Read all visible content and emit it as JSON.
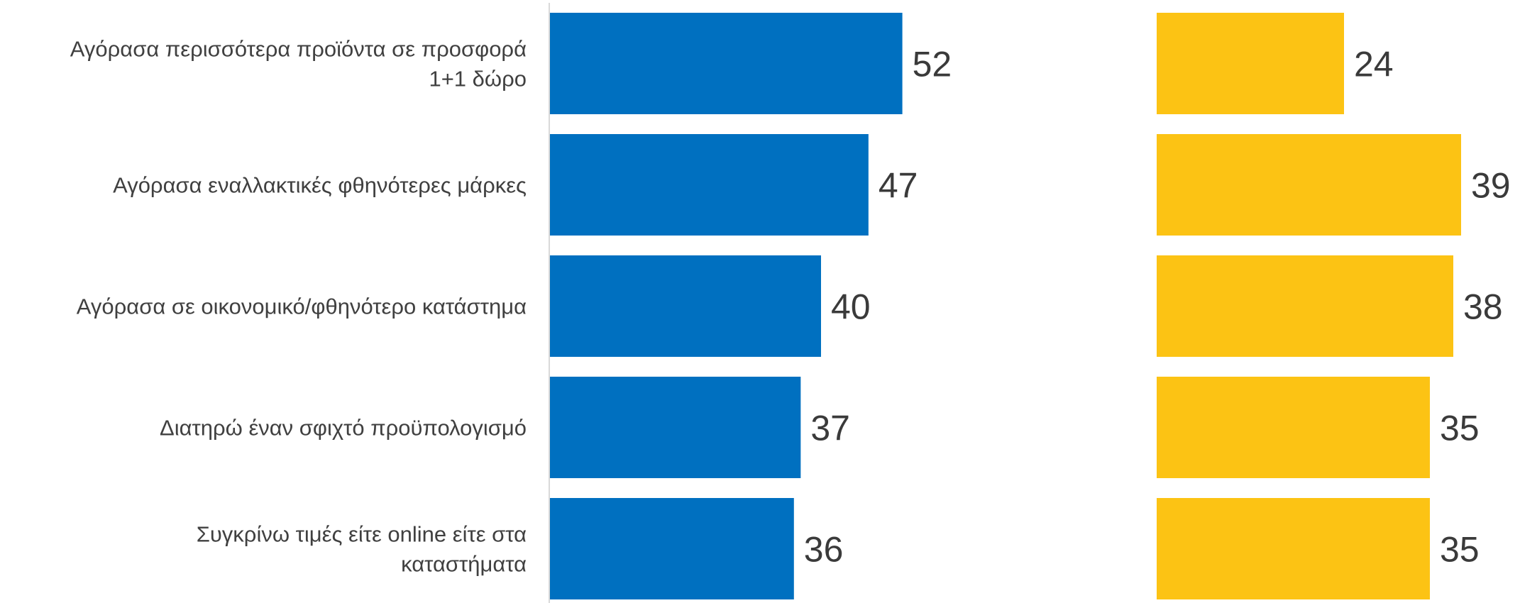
{
  "chart_data": {
    "type": "bar",
    "orientation": "horizontal",
    "categories": [
      [
        "Αγόρασα περισσότερα προϊόντα σε προσφορά",
        "1+1 δώρο"
      ],
      [
        "Αγόρασα εναλλακτικές φθηνότερες μάρκες"
      ],
      [
        "Αγόρασα σε οικονομικό/φθηνότερο κατάστημα"
      ],
      [
        "Διατηρώ έναν σφιχτό προϋπολογισμό"
      ],
      [
        "Συγκρίνω τιμές είτε online είτε στα",
        "καταστήματα"
      ]
    ],
    "series": [
      {
        "values": [
          52,
          47,
          40,
          37,
          36
        ],
        "color": "#0070c0"
      },
      {
        "values": [
          24,
          39,
          38,
          35,
          35
        ],
        "color": "#fcc314"
      }
    ],
    "xlim": [
      0,
      52
    ],
    "data_labels": true,
    "grid": false,
    "legend": "none"
  }
}
